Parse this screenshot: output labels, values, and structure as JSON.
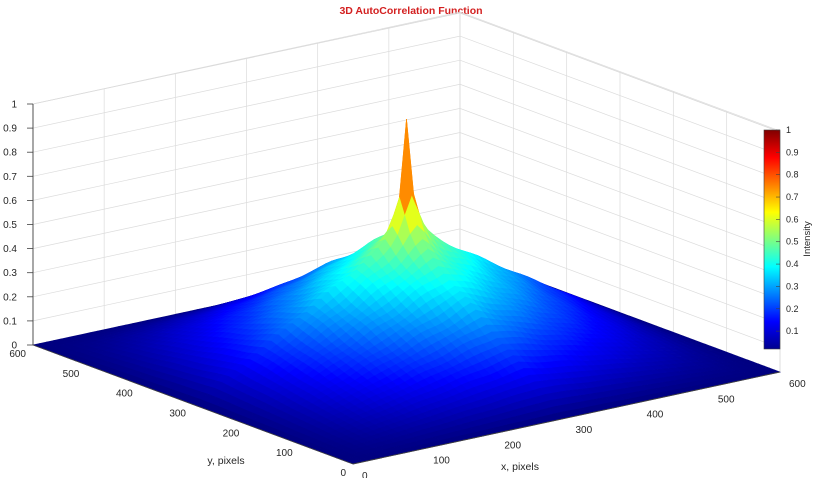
{
  "chart_data": {
    "type": "surface",
    "title": "3D AutoCorrelation Function",
    "xlabel": "x, pixels",
    "ylabel": "y, pixels",
    "zlabel": "",
    "colorbar_label": "Intensity",
    "colormap": "jet",
    "xlim": [
      0,
      600
    ],
    "ylim": [
      0,
      600
    ],
    "zlim": [
      0,
      1
    ],
    "x_ticks": [
      "0",
      "100",
      "200",
      "300",
      "400",
      "500",
      "600"
    ],
    "y_ticks": [
      "0",
      "100",
      "200",
      "300",
      "400",
      "500",
      "600"
    ],
    "z_ticks": [
      "0",
      "0.1",
      "0.2",
      "0.3",
      "0.4",
      "0.5",
      "0.6",
      "0.7",
      "0.8",
      "0.9",
      "1"
    ],
    "colorbar_ticks": [
      "0.1",
      "0.2",
      "0.3",
      "0.4",
      "0.5",
      "0.6",
      "0.7",
      "0.8",
      "0.9",
      "1"
    ],
    "grid": true,
    "surface": {
      "peak_location": [
        300,
        300
      ],
      "peak_value": 1.0,
      "broad_peak_value": 0.55,
      "edge_value": 0.0
    }
  }
}
